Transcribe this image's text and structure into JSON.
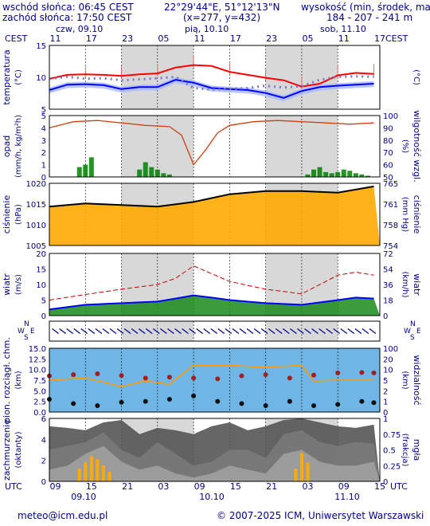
{
  "header": {
    "sunrise": "wschód słońca: 06:45 CEST",
    "sunset": "zachód słońca: 17:50 CEST",
    "coords": "22°29'44\"E, 51°12'13\"N",
    "grid": "(x=277, y=432)",
    "elevation_label": "wysokość (min, środek, max)",
    "elevation_values": "184 - 207 - 241 m"
  },
  "timeline": {
    "tz_top": "CEST",
    "tz_bottom": "UTC",
    "days_top": [
      "czw, 09.10",
      "pią, 10.10",
      "sob, 11.10"
    ],
    "hours_top": [
      "11",
      "17",
      "23",
      "05",
      "11",
      "17",
      "23",
      "05",
      "11",
      "17"
    ],
    "hours_bottom": [
      "09",
      "15",
      "21",
      "03",
      "09",
      "15",
      "21",
      "03",
      "09",
      "15"
    ],
    "dates_bottom": [
      "09.10",
      "10.10",
      "11.10"
    ]
  },
  "panels": {
    "temperature": {
      "label": "temperatura",
      "unit": "(°C)",
      "right_unit": "(°C)",
      "ticks": [
        "15",
        "10",
        "5"
      ]
    },
    "precip": {
      "label": "opad",
      "unit": "(mm/h, kg/m²h)",
      "right_label": "wilgotność wzgl.",
      "right_unit": "(%)",
      "ticks": [
        "5",
        "4",
        "3",
        "2",
        "1",
        "0"
      ],
      "right_ticks": [
        "100",
        "90",
        "80",
        "70",
        "60",
        "50"
      ]
    },
    "pressure": {
      "label": "ciśnienie",
      "unit": "(hPa)",
      "right_label": "ciśnienie",
      "right_unit": "(mm Hg)",
      "ticks": [
        "1020",
        "1015",
        "1010",
        "1005"
      ],
      "right_ticks": [
        "765",
        "761",
        "758",
        "754"
      ]
    },
    "wind": {
      "label": "wiatr",
      "unit": "(m/s)",
      "right_label": "wiatr",
      "right_unit": "(km/h)",
      "ticks": [
        "20",
        "15",
        "10",
        "5",
        "0"
      ],
      "right_ticks": [
        "72",
        "54",
        "36",
        "18",
        "0"
      ]
    },
    "direction": {
      "left_letters": [
        "N",
        "W",
        "E",
        "S"
      ],
      "right_letters": [
        "N",
        "W",
        "E",
        "S"
      ]
    },
    "visibility": {
      "label": "pion. rozciągł. chm.",
      "unit": "(km)",
      "right_label": "widzialność",
      "right_unit": "(km)",
      "ticks": [
        "15.0",
        "12.5",
        "10.0",
        "7.5",
        "5.0",
        "2.5",
        "0.0"
      ],
      "right_ticks": [
        "100",
        "20",
        "10",
        "5",
        "2",
        "1",
        "0"
      ]
    },
    "cloud": {
      "label": "zachmurzenie",
      "unit": "(oktanty)",
      "right_label": "mgła",
      "right_unit": "(frakcja)",
      "ticks": [
        "6",
        "4",
        "2",
        "0"
      ],
      "right_ticks": [
        "1",
        "0.75",
        "0.5",
        "0.25",
        "0"
      ]
    }
  },
  "footer": {
    "email": "meteo@icm.edu.pl",
    "copyright": "© 2007-2025 ICM, Uniwersytet Warszawski"
  },
  "colors": {
    "text": "#00008b",
    "night": "#d8d8d8",
    "temp_line": "#ff0000",
    "dew_line": "#0000ff",
    "humidity": "#d04010",
    "precip": "#008000",
    "pressure_fill": "#ffaa00",
    "wind_max": "#cc0000",
    "wind_avg": "#0000ff",
    "sky": "#6fb6e6",
    "visibility": "#ff9900"
  },
  "chart_data": [
    {
      "type": "line",
      "panel": "temperature",
      "x_hours": [
        0,
        3,
        6,
        9,
        12,
        15,
        18,
        21,
        24,
        27,
        30,
        33,
        36,
        39,
        42,
        45,
        48,
        51,
        54
      ],
      "series": [
        {
          "values": [
            9.2,
            10.0,
            10.1,
            10.0,
            9.8,
            10.1,
            10.3,
            11.5,
            12.0,
            11.8,
            10.6,
            10.0,
            9.4,
            8.9,
            7.6,
            8.2,
            9.9,
            10.4,
            10.2
          ]
        },
        {
          "values": [
            6.9,
            8.0,
            8.1,
            7.9,
            7.1,
            7.5,
            7.5,
            9.0,
            8.4,
            7.3,
            7.1,
            6.9,
            6.3,
            5.3,
            6.7,
            7.5,
            7.8,
            8.0,
            8.2
          ]
        },
        {
          "values": [
            9.2,
            9.6,
            9.2,
            9.3,
            8.9,
            9.1,
            9.3,
            9.6,
            7.3,
            7.0,
            7.1,
            7.3,
            7.8,
            7.4,
            7.7,
            9.0,
            9.6,
            9.7,
            9.6
          ]
        }
      ],
      "ylim": [
        3,
        16
      ]
    },
    {
      "type": "bar",
      "panel": "precip",
      "x_hours": [
        5,
        6,
        7,
        15,
        16,
        17,
        18,
        19,
        20,
        43,
        44,
        45,
        46,
        47,
        48,
        49,
        50,
        51,
        52,
        53
      ],
      "values": [
        0.8,
        1.0,
        1.6,
        0.6,
        1.2,
        0.8,
        0.6,
        0.3,
        0.2,
        0.2,
        0.6,
        0.8,
        0.4,
        0.3,
        0.4,
        0.6,
        0.5,
        0.3,
        0.2,
        0.1
      ],
      "ylim": [
        0,
        5
      ],
      "humidity_x_hours": [
        0,
        4,
        8,
        12,
        16,
        20,
        22,
        24,
        26,
        28,
        30,
        34,
        38,
        42,
        46,
        50,
        54
      ],
      "humidity_values": [
        90,
        95,
        96,
        94,
        92,
        91,
        84,
        60,
        72,
        86,
        92,
        95,
        96,
        95,
        94,
        93,
        94
      ],
      "humidity_ylim": [
        50,
        100
      ]
    },
    {
      "type": "area",
      "panel": "pressure",
      "x_hours": [
        0,
        6,
        12,
        18,
        24,
        30,
        36,
        42,
        48,
        54
      ],
      "values": [
        1017.5,
        1018.5,
        1018.0,
        1017.5,
        1019.0,
        1021.5,
        1022.5,
        1022.5,
        1022.0,
        1024.0
      ],
      "ylim": [
        1005,
        1025
      ]
    },
    {
      "type": "line",
      "panel": "wind",
      "x_hours": [
        0,
        6,
        12,
        18,
        21,
        24,
        27,
        30,
        36,
        42,
        48,
        51,
        54
      ],
      "series": [
        {
          "values": [
            5.0,
            6.8,
            8.5,
            10.0,
            12.0,
            16.0,
            13.5,
            11.0,
            8.5,
            7.0,
            13.0,
            14.0,
            13.0
          ]
        },
        {
          "values": [
            2.0,
            3.5,
            4.0,
            4.5,
            5.5,
            6.5,
            5.8,
            5.0,
            4.0,
            3.5,
            5.0,
            5.8,
            5.5
          ]
        }
      ],
      "ylim": [
        0,
        20
      ]
    },
    {
      "type": "scatter",
      "panel": "visibility",
      "x_hours": [
        0,
        4,
        8,
        12,
        16,
        20,
        24,
        28,
        32,
        36,
        40,
        44,
        48,
        52,
        54
      ],
      "series": [
        {
          "values": [
            8.5,
            8.8,
            9.0,
            8.6,
            8.0,
            8.2,
            8.0,
            7.8,
            8.5,
            8.8,
            8.0,
            8.7,
            9.2,
            9.3,
            9.2
          ]
        },
        {
          "values": [
            3.0,
            2.0,
            1.5,
            2.3,
            2.5,
            3.0,
            3.8,
            2.5,
            2.0,
            1.5,
            2.5,
            1.5,
            1.8,
            2.5,
            2.2
          ]
        }
      ],
      "visibility_x_hours": [
        0,
        6,
        12,
        16,
        20,
        24,
        30,
        36,
        42,
        44,
        48,
        54
      ],
      "visibility_values": [
        7.5,
        8.0,
        6.0,
        7.3,
        6.5,
        11.0,
        11.0,
        10.5,
        11.0,
        7.3,
        7.5,
        7.5
      ],
      "ylim": [
        0,
        15
      ]
    },
    {
      "type": "area",
      "panel": "cloud",
      "x_hours": [
        0,
        3,
        6,
        9,
        12,
        15,
        18,
        21,
        24,
        27,
        30,
        33,
        36,
        39,
        42,
        45,
        48,
        51,
        54
      ],
      "series": [
        {
          "values": [
            7.0,
            6.8,
            6.5,
            7.5,
            7.8,
            6.0,
            6.8,
            6.5,
            6.0,
            7.0,
            7.5,
            6.5,
            7.0,
            7.8,
            8.0,
            7.5,
            7.0,
            6.8,
            7.2
          ]
        },
        {
          "values": [
            4.0,
            4.5,
            5.0,
            6.2,
            4.0,
            3.0,
            5.0,
            3.5,
            2.0,
            2.5,
            4.0,
            4.0,
            3.0,
            6.0,
            6.5,
            5.0,
            4.5,
            5.0,
            4.8
          ]
        },
        {
          "values": [
            1.5,
            2.0,
            3.5,
            4.5,
            2.5,
            1.5,
            2.0,
            1.0,
            0.5,
            1.0,
            2.0,
            1.5,
            1.0,
            3.5,
            4.0,
            2.5,
            2.0,
            2.0,
            2.5
          ]
        }
      ],
      "fog_x_hours": [
        5,
        6,
        7,
        8,
        9,
        10,
        41,
        42,
        43
      ],
      "fog_values": [
        0.2,
        0.3,
        0.4,
        0.35,
        0.25,
        0.15,
        0.2,
        0.45,
        0.3
      ],
      "ylim": [
        0,
        8
      ]
    }
  ]
}
